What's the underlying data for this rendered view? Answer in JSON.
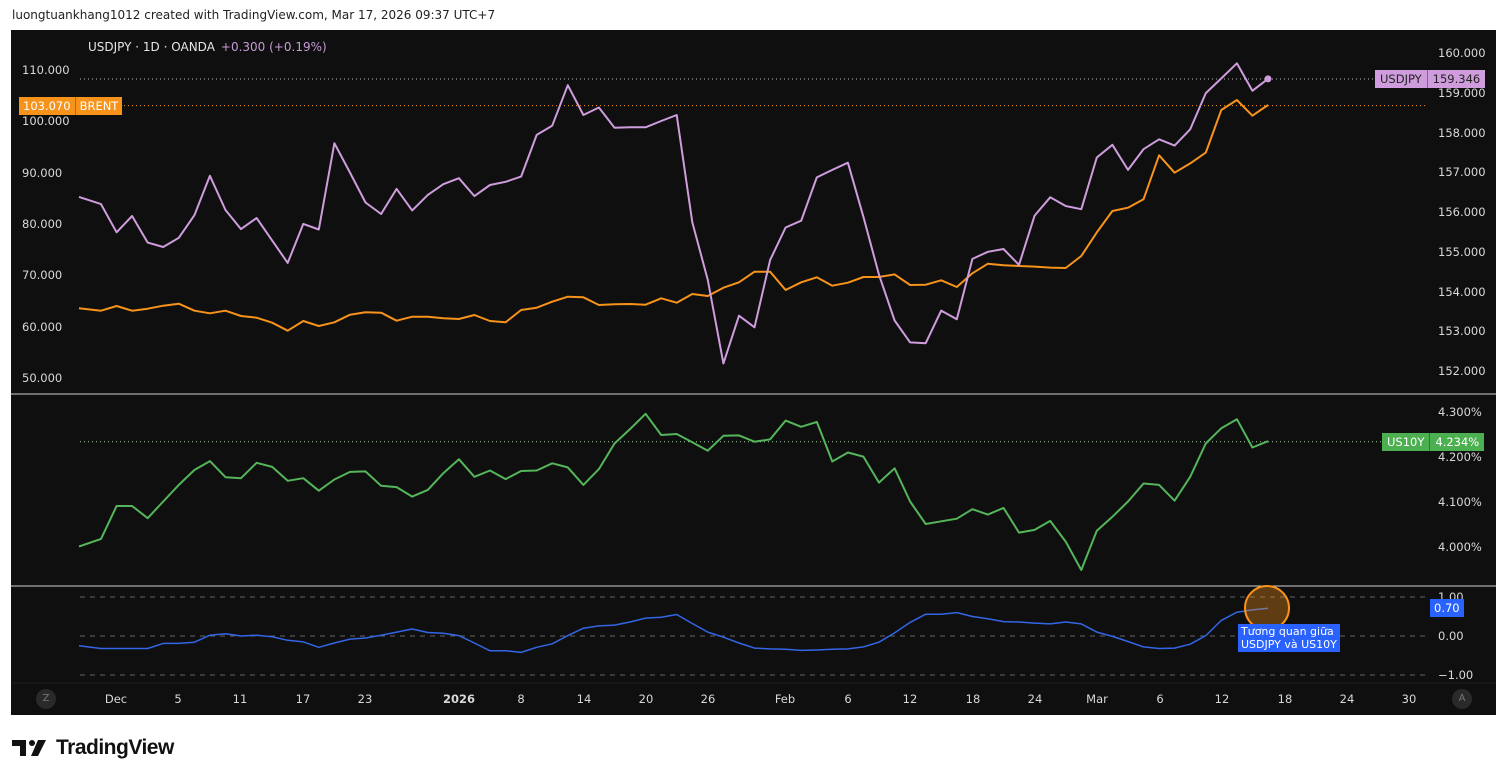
{
  "header": {
    "caption": "luongtuankhang1012 created with TradingView.com, Mar 17, 2026 09:37 UTC+7"
  },
  "legend": {
    "symbol": "USDJPY · 1D · OANDA",
    "change": "+0.300 (+0.19%)"
  },
  "tags": {
    "usdjpy": {
      "name": "USDJPY",
      "value": "159.346"
    },
    "brent": {
      "name": "BRENT",
      "value": "103.070"
    },
    "us10y": {
      "name": "US10Y",
      "value": "4.234%"
    },
    "corr": {
      "value": "0.70"
    }
  },
  "annotation": {
    "line1": "Tương quan giữa",
    "line2": "USDJPY và US10Y"
  },
  "buttons": {
    "z": "Z",
    "a": "A"
  },
  "footer": {
    "brand": "TradingView"
  },
  "colors": {
    "usdjpy": "#cf9ddd",
    "brent": "#f7931a",
    "us10y": "#55b55a",
    "corr": "#3366e6",
    "annotation_circle": "#f7931a",
    "annotation_box": "#2962ff",
    "background": "#0f0f0f"
  },
  "time_axis": {
    "labels": [
      "Dec",
      "5",
      "11",
      "17",
      "23",
      "2026",
      "8",
      "14",
      "20",
      "26",
      "Feb",
      "6",
      "12",
      "18",
      "24",
      "Mar",
      "6",
      "12",
      "18",
      "24",
      "30"
    ],
    "bold": [
      "2026"
    ]
  },
  "chart_data": [
    {
      "type": "line",
      "pane": "main",
      "right_axis": {
        "ticks": [
          "160.000",
          "159.000",
          "158.000",
          "157.000",
          "156.000",
          "155.000",
          "154.000",
          "153.000",
          "152.000"
        ],
        "range": [
          152,
          160
        ]
      },
      "left_axis": {
        "ticks": [
          "110.000",
          "100.000",
          "90.000",
          "80.000",
          "70.000",
          "60.000",
          "50.000"
        ],
        "range": [
          50,
          110
        ]
      },
      "series": [
        {
          "name": "USDJPY",
          "axis": "right",
          "values": [
            156.38,
            156.2,
            155.49,
            155.9,
            155.23,
            155.12,
            155.35,
            155.92,
            156.91,
            156.05,
            155.57,
            155.85,
            155.28,
            154.72,
            155.7,
            155.56,
            157.73,
            156.99,
            156.24,
            155.95,
            156.58,
            156.04,
            156.43,
            156.7,
            156.85,
            156.4,
            156.68,
            156.76,
            156.89,
            157.94,
            158.17,
            159.19,
            158.44,
            158.63,
            158.12,
            158.13,
            158.13,
            158.29,
            158.44,
            155.74,
            154.29,
            152.19,
            153.39,
            153.1,
            154.79,
            155.61,
            155.78,
            156.87,
            157.06,
            157.24,
            155.88,
            154.42,
            153.27,
            152.72,
            152.7,
            153.52,
            153.3,
            154.82,
            155.0,
            155.07,
            154.67,
            155.91,
            156.37,
            156.15,
            156.07,
            157.37,
            157.69,
            157.06,
            157.58,
            157.83,
            157.67,
            158.08,
            158.99,
            159.36,
            159.74,
            159.05,
            159.35
          ]
        },
        {
          "name": "BRENT",
          "axis": "left",
          "values": [
            63.57,
            63.11,
            64.02,
            63.11,
            63.5,
            64.09,
            64.48,
            63.11,
            62.6,
            63.11,
            62.08,
            61.75,
            60.77,
            59.22,
            61.1,
            60.13,
            60.84,
            62.33,
            62.79,
            62.72,
            61.16,
            61.94,
            61.94,
            61.62,
            61.49,
            62.27,
            61.1,
            60.84,
            63.24,
            63.7,
            64.86,
            65.84,
            65.71,
            64.22,
            64.35,
            64.41,
            64.28,
            65.52,
            64.67,
            66.36,
            65.97,
            67.59,
            68.64,
            70.71,
            70.71,
            67.14,
            68.64,
            69.61,
            67.98,
            68.57,
            69.67,
            69.67,
            70.17,
            68.11,
            68.17,
            69.03,
            67.72,
            70.39,
            72.27,
            71.95,
            71.82,
            71.69,
            71.5,
            71.43,
            73.76,
            78.37,
            82.53,
            83.18,
            84.81,
            93.38,
            89.99,
            91.81,
            93.9,
            102.21,
            104.16,
            101.1,
            103.18
          ]
        }
      ]
    },
    {
      "type": "line",
      "pane": "us10y",
      "right_axis": {
        "ticks": [
          "4.300%",
          "4.200%",
          "4.100%",
          "4.000%"
        ],
        "range": [
          4.0,
          4.3
        ]
      },
      "series": [
        {
          "name": "US10Y",
          "values": [
            4.001,
            4.018,
            4.091,
            4.091,
            4.064,
            4.101,
            4.138,
            4.171,
            4.191,
            4.155,
            4.153,
            4.187,
            4.178,
            4.147,
            4.153,
            4.125,
            4.15,
            4.167,
            4.168,
            4.136,
            4.133,
            4.112,
            4.127,
            4.164,
            4.195,
            4.156,
            4.17,
            4.151,
            4.169,
            4.17,
            4.186,
            4.177,
            4.138,
            4.173,
            4.23,
            4.262,
            4.296,
            4.249,
            4.251,
            4.233,
            4.214,
            4.247,
            4.248,
            4.234,
            4.239,
            4.281,
            4.267,
            4.278,
            4.19,
            4.21,
            4.201,
            4.143,
            4.175,
            4.101,
            4.051,
            4.057,
            4.063,
            4.084,
            4.072,
            4.087,
            4.032,
            4.038,
            4.058,
            4.012,
            3.949,
            4.036,
            4.067,
            4.101,
            4.141,
            4.138,
            4.103,
            4.156,
            4.23,
            4.264,
            4.284,
            4.221,
            4.235
          ]
        }
      ]
    },
    {
      "type": "line",
      "pane": "correlation",
      "right_axis": {
        "ticks": [
          "1.00",
          "0.00",
          "−1.00"
        ],
        "range": [
          -1,
          1
        ]
      },
      "series": [
        {
          "values": [
            -0.25,
            -0.32,
            -0.32,
            -0.32,
            -0.32,
            -0.19,
            -0.19,
            -0.16,
            0.02,
            0.06,
            0.0,
            0.02,
            -0.02,
            -0.11,
            -0.15,
            -0.29,
            -0.18,
            -0.08,
            -0.05,
            0.02,
            0.1,
            0.18,
            0.09,
            0.07,
            0.01,
            -0.18,
            -0.38,
            -0.38,
            -0.42,
            -0.29,
            -0.2,
            0.01,
            0.2,
            0.26,
            0.28,
            0.36,
            0.46,
            0.48,
            0.55,
            0.32,
            0.1,
            -0.03,
            -0.18,
            -0.31,
            -0.33,
            -0.34,
            -0.37,
            -0.36,
            -0.34,
            -0.33,
            -0.28,
            -0.16,
            0.08,
            0.35,
            0.56,
            0.56,
            0.6,
            0.5,
            0.44,
            0.37,
            0.36,
            0.33,
            0.31,
            0.36,
            0.31,
            0.1,
            -0.01,
            -0.14,
            -0.28,
            -0.32,
            -0.31,
            -0.21,
            0.01,
            0.4,
            0.61,
            0.67,
            0.71
          ]
        }
      ]
    }
  ]
}
